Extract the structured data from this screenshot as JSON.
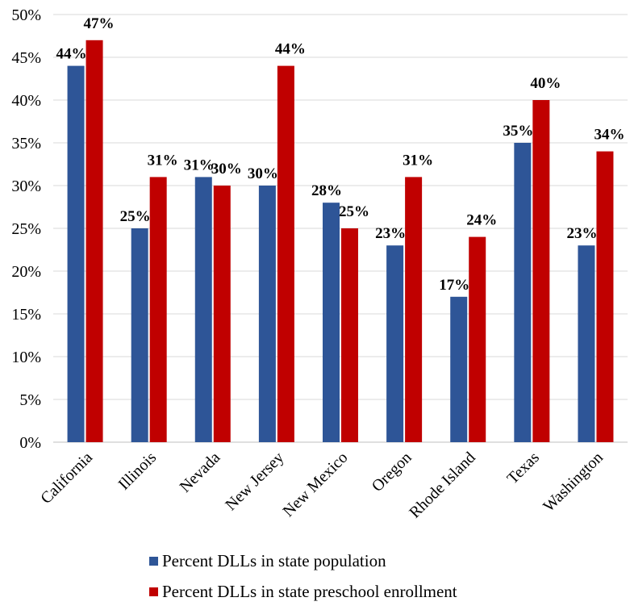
{
  "chart_data": {
    "type": "bar",
    "categories": [
      "California",
      "Illinois",
      "Nevada",
      "New Jersey",
      "New Mexico",
      "Oregon",
      "Rhode Island",
      "Texas",
      "Washington"
    ],
    "series": [
      {
        "name": "Percent DLLs in state population",
        "color": "#2E5597",
        "values": [
          44,
          25,
          31,
          30,
          28,
          23,
          17,
          35,
          23
        ],
        "labels": [
          "44%",
          "25%",
          "31%",
          "30%",
          "28%",
          "23%",
          "17%",
          "35%",
          "23%"
        ]
      },
      {
        "name": "Percent DLLs in state preschool enrollment",
        "color": "#C00000",
        "values": [
          47,
          31,
          30,
          44,
          25,
          31,
          24,
          40,
          34
        ],
        "labels": [
          "47%",
          "31%",
          "30%",
          "44%",
          "25%",
          "31%",
          "24%",
          "40%",
          "34%"
        ]
      }
    ],
    "y_ticks": [
      "0%",
      "5%",
      "10%",
      "15%",
      "20%",
      "25%",
      "30%",
      "35%",
      "40%",
      "45%",
      "50%"
    ],
    "ylim": [
      0,
      50
    ],
    "grid": true,
    "legend_position": "bottom",
    "title": "",
    "xlabel": "",
    "ylabel": ""
  }
}
